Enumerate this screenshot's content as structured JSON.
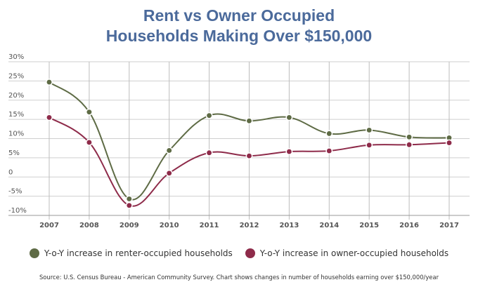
{
  "chart_data": {
    "type": "line",
    "title": "Rent vs Owner Occupied Households Making Over $150,000",
    "title_lines": [
      "Rent vs Owner Occupied",
      "Households Making Over $150,000"
    ],
    "x": [
      "2007",
      "2008",
      "2009",
      "2010",
      "2011",
      "2012",
      "2013",
      "2014",
      "2015",
      "2016",
      "2017"
    ],
    "y_ticks": [
      30,
      25,
      20,
      15,
      10,
      5,
      0,
      -5,
      -10
    ],
    "y_tick_labels": [
      "30%",
      "25%",
      "20%",
      "15%",
      "10%",
      "5%",
      "0",
      "-5%",
      "-10%"
    ],
    "ylim": [
      -10,
      30
    ],
    "grid": true,
    "legend_position": "bottom",
    "series": [
      {
        "name": "Y-o-Y increase in renter-occupied households",
        "color": "#5e6b45",
        "values": [
          24.7,
          16.9,
          -5.7,
          6.9,
          16.0,
          14.6,
          15.5,
          11.3,
          12.2,
          10.4,
          10.2
        ]
      },
      {
        "name": "Y-o-Y increase in owner-occupied households",
        "color": "#8e2b4a",
        "values": [
          15.5,
          9.0,
          -7.4,
          1.0,
          6.3,
          5.5,
          6.6,
          6.8,
          8.3,
          8.4,
          8.9
        ]
      }
    ],
    "source": "Source: U.S. Census Bureau - American Community Survey. Chart shows changes in number of households earning over $150,000/year"
  }
}
